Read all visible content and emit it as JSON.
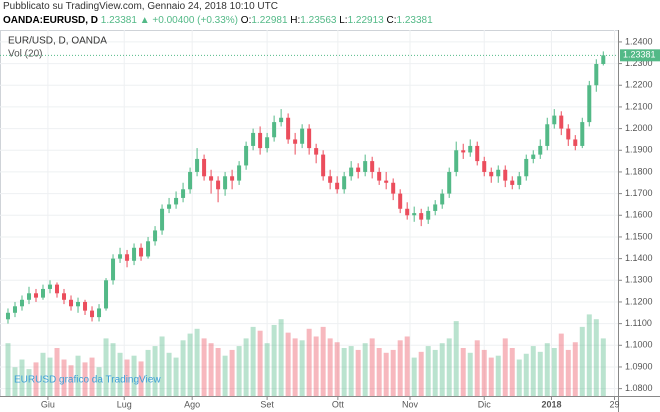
{
  "header": {
    "published": "Pubblicato su TradingView.com, Gennaio 24, 2018 10:10 UTC",
    "symbol": "OANDA:EURUSD, D",
    "price": "1.23381",
    "change": "▲ +0.00400 (+0.33%)",
    "ohlc": [
      {
        "label": "O:",
        "value": "1.22981"
      },
      {
        "label": "H:",
        "value": "1.23563"
      },
      {
        "label": "L:",
        "value": "1.22913"
      },
      {
        "label": "C:",
        "value": "1.23381"
      }
    ]
  },
  "chart_data": {
    "type": "candlestick",
    "legend": "EUR/USD, D, OANDA",
    "volume_label": "Vol (20)",
    "watermark": "EURUSD grafico da TradingView",
    "up_color": "#53b987",
    "down_color": "#eb4d5c",
    "grid": true,
    "xlim": [
      -1.14,
      87.1
    ],
    "xticks": [
      {
        "value": 5.7,
        "label": "Giu"
      },
      {
        "value": 16.6,
        "label": "Lug"
      },
      {
        "value": 26.3,
        "label": "Ago"
      },
      {
        "value": 37,
        "label": "Set"
      },
      {
        "value": 47.1,
        "label": "Ott"
      },
      {
        "value": 57.4,
        "label": "Nov"
      },
      {
        "value": 68,
        "label": "Dic"
      },
      {
        "value": 77.6,
        "label": "2018"
      },
      {
        "value": 86.6,
        "label": "29"
      }
    ],
    "ylim": [
      1.0766,
      1.2455
    ],
    "yticks": [
      {
        "value": 1.08,
        "label": "1.0800"
      },
      {
        "value": 1.09,
        "label": "1.0900"
      },
      {
        "value": 1.1,
        "label": "1.1000"
      },
      {
        "value": 1.11,
        "label": "1.1100"
      },
      {
        "value": 1.12,
        "label": "1.1200"
      },
      {
        "value": 1.13,
        "label": "1.1300"
      },
      {
        "value": 1.14,
        "label": "1.1400"
      },
      {
        "value": 1.15,
        "label": "1.1500"
      },
      {
        "value": 1.16,
        "label": "1.1600"
      },
      {
        "value": 1.17,
        "label": "1.1700"
      },
      {
        "value": 1.18,
        "label": "1.1800"
      },
      {
        "value": 1.19,
        "label": "1.1900"
      },
      {
        "value": 1.2,
        "label": "1.2000"
      },
      {
        "value": 1.21,
        "label": "1.2100"
      },
      {
        "value": 1.22,
        "label": "1.2200"
      },
      {
        "value": 1.23,
        "label": "1.2300"
      },
      {
        "value": 1.24,
        "label": "1.2400"
      }
    ],
    "last_price": 1.23381,
    "vlim": [
      0,
      100
    ],
    "candles": [
      [
        1.112,
        1.117,
        1.11,
        1.115
      ],
      [
        1.115,
        1.12,
        1.113,
        1.118
      ],
      [
        1.118,
        1.123,
        1.116,
        1.121
      ],
      [
        1.121,
        1.127,
        1.119,
        1.124
      ],
      [
        1.124,
        1.126,
        1.12,
        1.122
      ],
      [
        1.122,
        1.128,
        1.121,
        1.126
      ],
      [
        1.126,
        1.13,
        1.124,
        1.128
      ],
      [
        1.128,
        1.129,
        1.122,
        1.124
      ],
      [
        1.124,
        1.126,
        1.119,
        1.121
      ],
      [
        1.121,
        1.123,
        1.116,
        1.118
      ],
      [
        1.118,
        1.122,
        1.115,
        1.12
      ],
      [
        1.12,
        1.121,
        1.114,
        1.116
      ],
      [
        1.116,
        1.118,
        1.111,
        1.113
      ],
      [
        1.113,
        1.119,
        1.111,
        1.117
      ],
      [
        1.117,
        1.131,
        1.116,
        1.13
      ],
      [
        1.13,
        1.142,
        1.128,
        1.14
      ],
      [
        1.14,
        1.145,
        1.138,
        1.142
      ],
      [
        1.142,
        1.144,
        1.136,
        1.139
      ],
      [
        1.139,
        1.147,
        1.137,
        1.145
      ],
      [
        1.145,
        1.147,
        1.139,
        1.141
      ],
      [
        1.141,
        1.15,
        1.14,
        1.148
      ],
      [
        1.148,
        1.155,
        1.146,
        1.153
      ],
      [
        1.153,
        1.165,
        1.151,
        1.163
      ],
      [
        1.163,
        1.168,
        1.161,
        1.165
      ],
      [
        1.165,
        1.171,
        1.163,
        1.168
      ],
      [
        1.168,
        1.175,
        1.166,
        1.172
      ],
      [
        1.172,
        1.182,
        1.17,
        1.18
      ],
      [
        1.18,
        1.191,
        1.178,
        1.186
      ],
      [
        1.186,
        1.188,
        1.176,
        1.178
      ],
      [
        1.178,
        1.181,
        1.17,
        1.176
      ],
      [
        1.176,
        1.178,
        1.166,
        1.172
      ],
      [
        1.172,
        1.18,
        1.169,
        1.178
      ],
      [
        1.178,
        1.181,
        1.172,
        1.176
      ],
      [
        1.176,
        1.185,
        1.174,
        1.183
      ],
      [
        1.183,
        1.194,
        1.181,
        1.192
      ],
      [
        1.192,
        1.2,
        1.19,
        1.198
      ],
      [
        1.198,
        1.201,
        1.188,
        1.191
      ],
      [
        1.191,
        1.198,
        1.189,
        1.196
      ],
      [
        1.196,
        1.206,
        1.194,
        1.203
      ],
      [
        1.203,
        1.209,
        1.201,
        1.205
      ],
      [
        1.205,
        1.207,
        1.193,
        1.195
      ],
      [
        1.195,
        1.198,
        1.188,
        1.193
      ],
      [
        1.193,
        1.202,
        1.191,
        1.2
      ],
      [
        1.2,
        1.202,
        1.188,
        1.191
      ],
      [
        1.191,
        1.193,
        1.184,
        1.188
      ],
      [
        1.188,
        1.19,
        1.176,
        1.178
      ],
      [
        1.178,
        1.181,
        1.172,
        1.175
      ],
      [
        1.175,
        1.178,
        1.17,
        1.172
      ],
      [
        1.172,
        1.18,
        1.17,
        1.178
      ],
      [
        1.178,
        1.185,
        1.176,
        1.182
      ],
      [
        1.182,
        1.184,
        1.177,
        1.18
      ],
      [
        1.18,
        1.188,
        1.178,
        1.185
      ],
      [
        1.185,
        1.187,
        1.177,
        1.18
      ],
      [
        1.18,
        1.182,
        1.174,
        1.176
      ],
      [
        1.176,
        1.18,
        1.172,
        1.175
      ],
      [
        1.175,
        1.177,
        1.167,
        1.17
      ],
      [
        1.17,
        1.172,
        1.161,
        1.163
      ],
      [
        1.163,
        1.166,
        1.158,
        1.16
      ],
      [
        1.16,
        1.164,
        1.157,
        1.161
      ],
      [
        1.161,
        1.163,
        1.155,
        1.158
      ],
      [
        1.158,
        1.164,
        1.156,
        1.162
      ],
      [
        1.162,
        1.167,
        1.16,
        1.165
      ],
      [
        1.165,
        1.172,
        1.163,
        1.17
      ],
      [
        1.17,
        1.182,
        1.168,
        1.18
      ],
      [
        1.18,
        1.194,
        1.178,
        1.19
      ],
      [
        1.19,
        1.193,
        1.186,
        1.189
      ],
      [
        1.189,
        1.195,
        1.187,
        1.192
      ],
      [
        1.192,
        1.194,
        1.183,
        1.185
      ],
      [
        1.185,
        1.187,
        1.178,
        1.18
      ],
      [
        1.18,
        1.182,
        1.175,
        1.178
      ],
      [
        1.178,
        1.183,
        1.175,
        1.181
      ],
      [
        1.181,
        1.183,
        1.173,
        1.176
      ],
      [
        1.176,
        1.178,
        1.172,
        1.174
      ],
      [
        1.174,
        1.18,
        1.172,
        1.178
      ],
      [
        1.178,
        1.188,
        1.176,
        1.186
      ],
      [
        1.186,
        1.19,
        1.184,
        1.188
      ],
      [
        1.188,
        1.195,
        1.186,
        1.192
      ],
      [
        1.192,
        1.205,
        1.19,
        1.202
      ],
      [
        1.202,
        1.209,
        1.2,
        1.206
      ],
      [
        1.206,
        1.208,
        1.197,
        1.2
      ],
      [
        1.2,
        1.202,
        1.192,
        1.195
      ],
      [
        1.195,
        1.197,
        1.19,
        1.192
      ],
      [
        1.192,
        1.205,
        1.191,
        1.203
      ],
      [
        1.203,
        1.222,
        1.201,
        1.22
      ],
      [
        1.22,
        1.232,
        1.217,
        1.22981
      ],
      [
        1.22981,
        1.23563,
        1.22913,
        1.23381
      ]
    ],
    "volume": [
      55,
      30,
      38,
      28,
      35,
      45,
      40,
      50,
      38,
      32,
      42,
      35,
      40,
      30,
      60,
      55,
      45,
      38,
      42,
      36,
      48,
      52,
      62,
      45,
      40,
      58,
      65,
      70,
      60,
      55,
      50,
      42,
      48,
      52,
      60,
      72,
      68,
      55,
      74,
      80,
      66,
      60,
      58,
      70,
      62,
      72,
      60,
      56,
      50,
      52,
      48,
      55,
      60,
      50,
      45,
      48,
      58,
      62,
      40,
      46,
      52,
      48,
      55,
      60,
      78,
      50,
      45,
      58,
      48,
      40,
      42,
      60,
      50,
      38,
      44,
      52,
      46,
      55,
      50,
      65,
      48,
      56,
      72,
      85,
      80,
      60
    ]
  }
}
